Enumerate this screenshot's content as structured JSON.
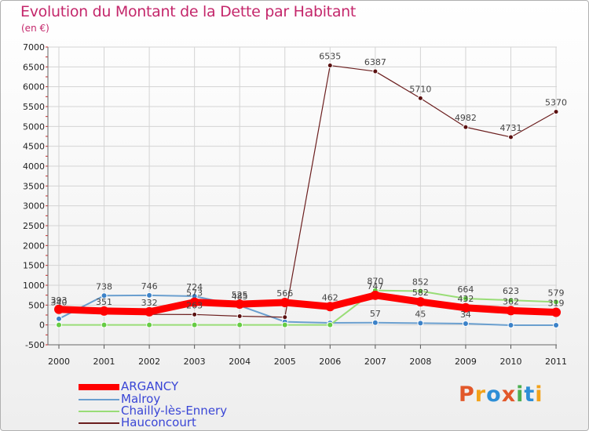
{
  "title": "Evolution du Montant de la Dette par Habitant",
  "subtitle": "(en €)",
  "logo_text": "Proxiti",
  "logo_colors": [
    "#e2582a",
    "#f2a21a",
    "#2d8ed6",
    "#e2582a",
    "#4caf50",
    "#2d8ed6",
    "#f2a21a"
  ],
  "chart_data": {
    "type": "line",
    "x": [
      "2000",
      "2001",
      "2002",
      "2003",
      "2004",
      "2005",
      "2006",
      "2007",
      "2008",
      "2009",
      "2010",
      "2011"
    ],
    "ylim": [
      -500,
      7000
    ],
    "yticks": [
      -500,
      0,
      500,
      1000,
      1500,
      2000,
      2500,
      3000,
      3500,
      4000,
      4500,
      5000,
      5500,
      6000,
      6500,
      7000
    ],
    "grid": true,
    "legend_position": "bottom-left",
    "series": [
      {
        "name": "ARGANCY",
        "color": "#ff0000",
        "values": [
          393,
          351,
          332,
          573,
          525,
          566,
          462,
          747,
          582,
          432,
          362,
          319
        ],
        "labels": [
          "393",
          "351",
          "332",
          "573",
          "525",
          "566",
          "462",
          "747",
          "582",
          "432",
          "362",
          "319"
        ]
      },
      {
        "name": "Malroy",
        "color": "#6a9fcf",
        "values": [
          155,
          738,
          746,
          724,
          485,
          80,
          52,
          57,
          45,
          34,
          -7,
          -7
        ],
        "labels": [
          "",
          "738",
          "746",
          "724",
          "485",
          "",
          "",
          "57",
          "45",
          "34",
          "",
          ""
        ]
      },
      {
        "name": "Chailly-lès-Ennery",
        "color": "#99dd77",
        "values": [
          0,
          0,
          0,
          0,
          0,
          0,
          0,
          870,
          852,
          664,
          623,
          579
        ],
        "labels": [
          "",
          "",
          "",
          "",
          "",
          "",
          "",
          "870",
          "852",
          "664",
          "623",
          "579"
        ]
      },
      {
        "name": "Hauconcourt",
        "color": "#6b1e1e",
        "values": [
          340,
          287,
          266,
          263,
          220,
          196,
          6535,
          6387,
          5710,
          4982,
          4731,
          5370
        ],
        "labels": [
          "340",
          "",
          "",
          "263",
          "",
          "",
          "6535",
          "6387",
          "5710",
          "4982",
          "4731",
          "5370"
        ]
      }
    ]
  }
}
